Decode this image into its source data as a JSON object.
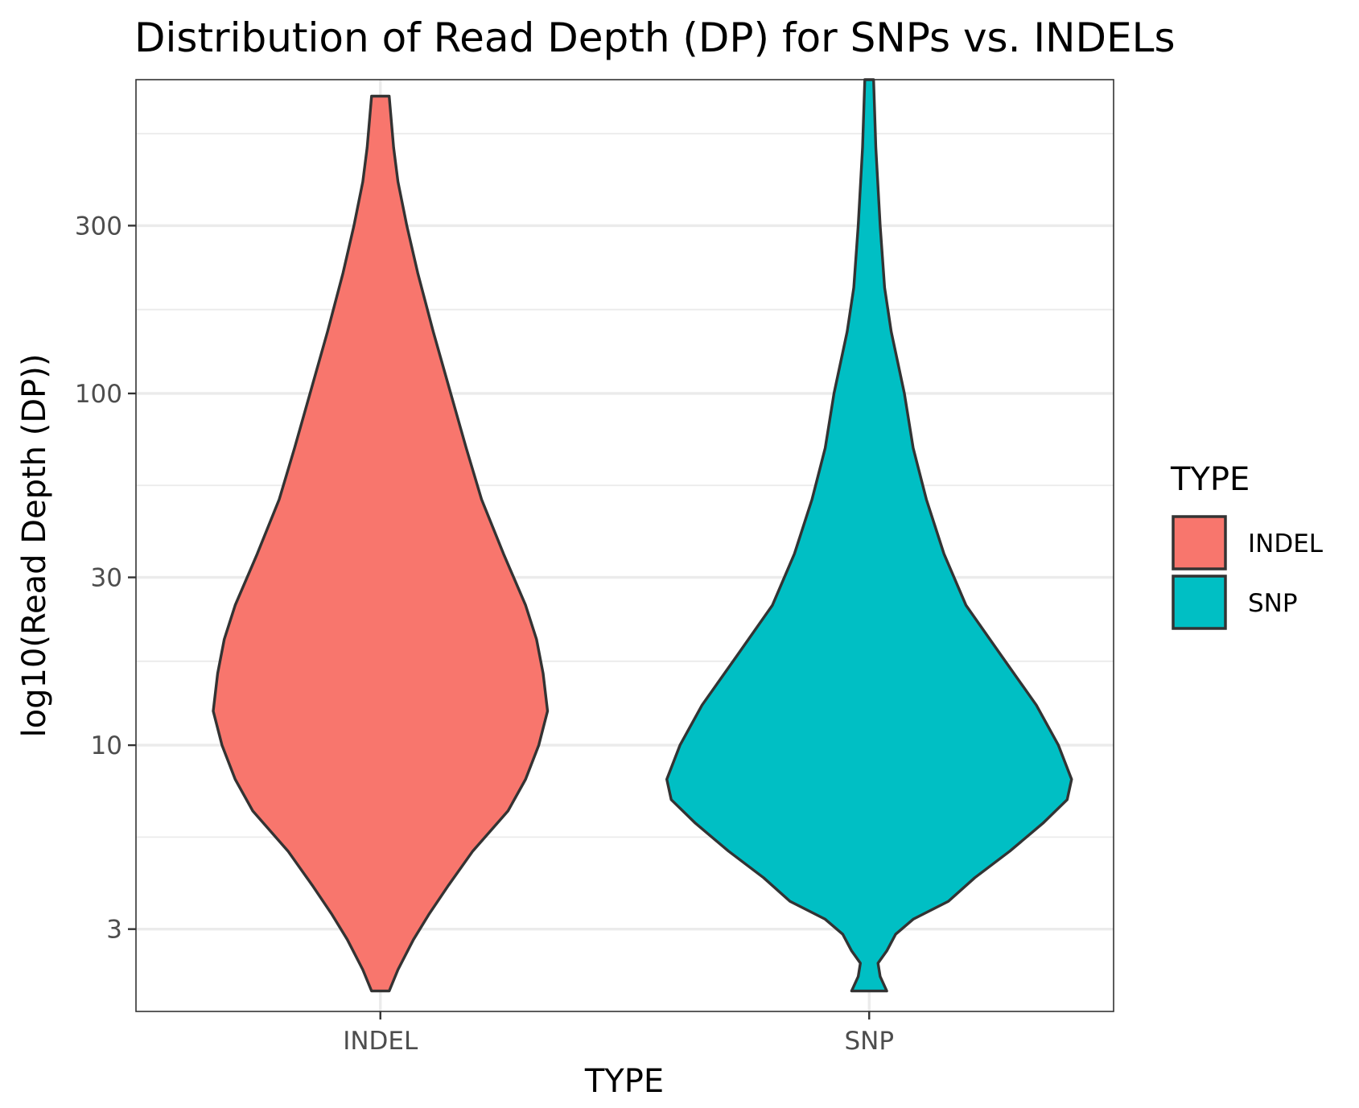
{
  "chart_data": {
    "type": "violin",
    "title": "Distribution of Read Depth (DP) for SNPs vs. INDELs",
    "xlabel": "TYPE",
    "ylabel": "log10(Read Depth (DP))",
    "y_scale": "log10",
    "ylim": [
      1.75,
      780
    ],
    "y_ticks": [
      {
        "value": 3,
        "label": "3"
      },
      {
        "value": 10,
        "label": "10"
      },
      {
        "value": 30,
        "label": "30"
      },
      {
        "value": 100,
        "label": "100"
      },
      {
        "value": 300,
        "label": "300"
      }
    ],
    "categories": [
      "INDEL",
      "SNP"
    ],
    "grid": true,
    "legend": {
      "title": "TYPE",
      "position": "right",
      "entries": [
        {
          "label": "INDEL",
          "color": "#F8766D"
        },
        {
          "label": "SNP",
          "color": "#00BFC4"
        }
      ]
    },
    "series": [
      {
        "name": "INDEL",
        "color": "#F8766D",
        "profile": [
          {
            "y": 2.0,
            "w": 0.04
          },
          {
            "y": 2.3,
            "w": 0.08
          },
          {
            "y": 2.8,
            "w": 0.15
          },
          {
            "y": 3.3,
            "w": 0.22
          },
          {
            "y": 4.0,
            "w": 0.31
          },
          {
            "y": 5.0,
            "w": 0.42
          },
          {
            "y": 6.5,
            "w": 0.58
          },
          {
            "y": 8.0,
            "w": 0.66
          },
          {
            "y": 10.0,
            "w": 0.72
          },
          {
            "y": 12.5,
            "w": 0.76
          },
          {
            "y": 16.0,
            "w": 0.74
          },
          {
            "y": 20.0,
            "w": 0.71
          },
          {
            "y": 25.0,
            "w": 0.66
          },
          {
            "y": 35.0,
            "w": 0.56
          },
          {
            "y": 50.0,
            "w": 0.46
          },
          {
            "y": 70.0,
            "w": 0.39
          },
          {
            "y": 100.0,
            "w": 0.32
          },
          {
            "y": 150.0,
            "w": 0.24
          },
          {
            "y": 220.0,
            "w": 0.17
          },
          {
            "y": 300.0,
            "w": 0.12
          },
          {
            "y": 400.0,
            "w": 0.08
          },
          {
            "y": 500.0,
            "w": 0.06
          },
          {
            "y": 700.0,
            "w": 0.04
          }
        ]
      },
      {
        "name": "SNP",
        "color": "#00BFC4",
        "profile": [
          {
            "y": 2.0,
            "w": 0.08
          },
          {
            "y": 2.2,
            "w": 0.05
          },
          {
            "y": 2.4,
            "w": 0.04
          },
          {
            "y": 2.6,
            "w": 0.08
          },
          {
            "y": 2.9,
            "w": 0.12
          },
          {
            "y": 3.2,
            "w": 0.2
          },
          {
            "y": 3.6,
            "w": 0.36
          },
          {
            "y": 4.2,
            "w": 0.48
          },
          {
            "y": 5.0,
            "w": 0.64
          },
          {
            "y": 6.0,
            "w": 0.79
          },
          {
            "y": 7.0,
            "w": 0.9
          },
          {
            "y": 8.0,
            "w": 0.92
          },
          {
            "y": 10.0,
            "w": 0.86
          },
          {
            "y": 13.0,
            "w": 0.76
          },
          {
            "y": 18.0,
            "w": 0.6
          },
          {
            "y": 25.0,
            "w": 0.44
          },
          {
            "y": 35.0,
            "w": 0.34
          },
          {
            "y": 50.0,
            "w": 0.26
          },
          {
            "y": 70.0,
            "w": 0.2
          },
          {
            "y": 100.0,
            "w": 0.16
          },
          {
            "y": 150.0,
            "w": 0.1
          },
          {
            "y": 200.0,
            "w": 0.07
          },
          {
            "y": 300.0,
            "w": 0.05
          },
          {
            "y": 500.0,
            "w": 0.03
          },
          {
            "y": 780.0,
            "w": 0.02
          }
        ]
      }
    ]
  }
}
